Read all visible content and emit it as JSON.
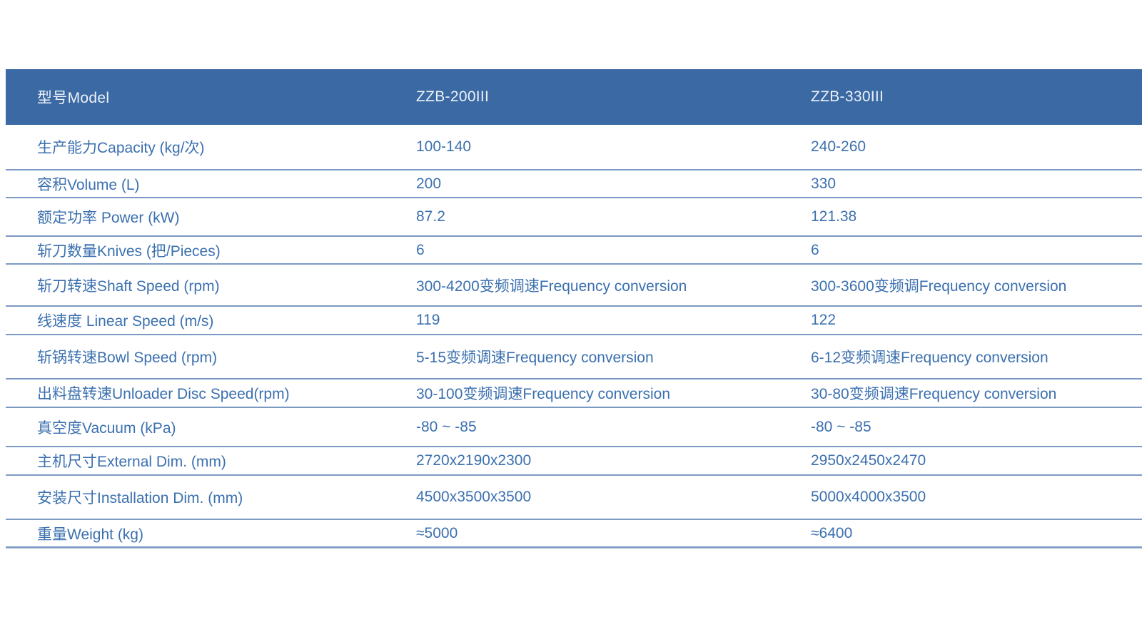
{
  "table": {
    "header": {
      "model_label": "型号Model",
      "model_a": "ZZB-200III",
      "model_b": "ZZB-330III"
    },
    "rows": [
      {
        "label": "生产能力Capacity (kg/次)",
        "value_a": "100-140",
        "value_b": "240-260"
      },
      {
        "label": "容积Volume (L)",
        "value_a": "200",
        "value_b": "330"
      },
      {
        "label": "额定功率 Power (kW)",
        "value_a": "87.2",
        "value_b": "121.38"
      },
      {
        "label": "斩刀数量Knives (把/Pieces)",
        "value_a": "6",
        "value_b": "6"
      },
      {
        "label": "斩刀转速Shaft Speed (rpm)",
        "value_a": "300-4200变频调速Frequency conversion",
        "value_b": "300-3600变频调Frequency conversion"
      },
      {
        "label": "线速度 Linear Speed (m/s)",
        "value_a": "119",
        "value_b": "122"
      },
      {
        "label": "斩锅转速Bowl Speed (rpm)",
        "value_a": "5-15变频调速Frequency conversion",
        "value_b": "6-12变频调速Frequency conversion"
      },
      {
        "label": "出料盘转速Unloader Disc Speed(rpm)",
        "value_a": "30-100变频调速Frequency conversion",
        "value_b": "30-80变频调速Frequency conversion"
      },
      {
        "label": "真空度Vacuum (kPa)",
        "value_a": "-80 ~ -85",
        "value_b": "-80 ~ -85"
      },
      {
        "label": "主机尺寸External Dim. (mm)",
        "value_a": "2720x2190x2300",
        "value_b": "2950x2450x2470"
      },
      {
        "label": "安装尺寸Installation Dim. (mm)",
        "value_a": "4500x3500x3500",
        "value_b": "5000x4000x3500"
      },
      {
        "label": "重量Weight (kg)",
        "value_a": "≈5000",
        "value_b": "≈6400"
      }
    ],
    "colors": {
      "header_bg": "#3a69a3",
      "header_text": "#eef2f8",
      "body_text": "#3b70af",
      "divider": "#7b9ac3"
    }
  }
}
